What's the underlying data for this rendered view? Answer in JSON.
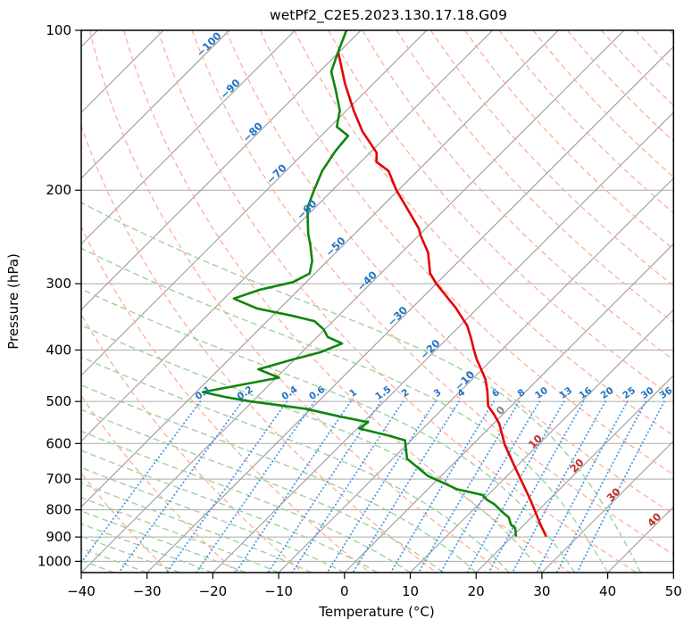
{
  "title": "wetPf2_C2E5.2023.130.17.18.G09",
  "axes": {
    "xlabel": "Temperature (°C)",
    "ylabel": "Pressure (hPa)",
    "x_ticks": [
      -40,
      -30,
      -20,
      -10,
      0,
      10,
      20,
      30,
      40,
      50
    ],
    "y_ticks": [
      100,
      200,
      300,
      400,
      500,
      600,
      700,
      800,
      900,
      1000
    ]
  },
  "chart_data": {
    "type": "line",
    "subtype": "skew-t-log-p",
    "title": "wetPf2_C2E5.2023.130.17.18.G09",
    "xlabel": "Temperature (°C)",
    "ylabel": "Pressure (hPa)",
    "xlim": [
      -40,
      50
    ],
    "ylim_hpa": [
      1050,
      100
    ],
    "grid": true,
    "skew": {
      "p_top": 100,
      "p_bottom": 1050,
      "t_min": -40,
      "t_max": 50
    },
    "series": [
      {
        "name": "temperature",
        "color": "#e60000",
        "width": 2.6,
        "points_p_t": [
          [
            110.5,
            -79.9
          ],
          [
            126,
            -74.3
          ],
          [
            141.6,
            -68.9
          ],
          [
            155,
            -64.4
          ],
          [
            170,
            -59.0
          ],
          [
            177,
            -57.6
          ],
          [
            184,
            -54.4
          ],
          [
            200,
            -50.3
          ],
          [
            218,
            -45.5
          ],
          [
            236,
            -41.1
          ],
          [
            244,
            -39.6
          ],
          [
            262,
            -36.0
          ],
          [
            287,
            -32.5
          ],
          [
            300,
            -30.0
          ],
          [
            333,
            -23.4
          ],
          [
            360,
            -18.9
          ],
          [
            382,
            -16.2
          ],
          [
            399,
            -14.3
          ],
          [
            416,
            -12.4
          ],
          [
            453,
            -8.1
          ],
          [
            478,
            -5.9
          ],
          [
            510,
            -3.5
          ],
          [
            530,
            -1.2
          ],
          [
            551,
            0.9
          ],
          [
            603,
            4.9
          ],
          [
            660,
            9.5
          ],
          [
            705,
            12.9
          ],
          [
            766,
            17.2
          ],
          [
            811,
            20.0
          ],
          [
            853,
            22.5
          ],
          [
            895,
            25.0
          ]
        ]
      },
      {
        "name": "dewpoint",
        "color": "#0c860c",
        "width": 2.6,
        "points_p_t": [
          [
            100,
            -82.2
          ],
          [
            110.7,
            -80.0
          ],
          [
            119.7,
            -78.2
          ],
          [
            129.4,
            -74.8
          ],
          [
            141.6,
            -71.0
          ],
          [
            151.9,
            -69.0
          ],
          [
            158,
            -65.9
          ],
          [
            169,
            -65.5
          ],
          [
            184,
            -64.5
          ],
          [
            200,
            -62.8
          ],
          [
            216,
            -61.1
          ],
          [
            229,
            -59.0
          ],
          [
            242,
            -57.0
          ],
          [
            252,
            -55.3
          ],
          [
            272,
            -52.3
          ],
          [
            287,
            -50.8
          ],
          [
            298,
            -52.0
          ],
          [
            308,
            -55.9
          ],
          [
            320,
            -58.5
          ],
          [
            334,
            -53.5
          ],
          [
            345,
            -46.9
          ],
          [
            353,
            -42.8
          ],
          [
            365,
            -40.3
          ],
          [
            378,
            -38.4
          ],
          [
            389,
            -35.2
          ],
          [
            404,
            -37.2
          ],
          [
            418,
            -40.5
          ],
          [
            435,
            -44.0
          ],
          [
            451,
            -39.6
          ],
          [
            465,
            -44.2
          ],
          [
            480,
            -49.0
          ],
          [
            490,
            -45.0
          ],
          [
            500,
            -40.2
          ],
          [
            516,
            -30.9
          ],
          [
            534,
            -24.3
          ],
          [
            547,
            -19.3
          ],
          [
            562,
            -19.7
          ],
          [
            580,
            -14.1
          ],
          [
            592,
            -10.9
          ],
          [
            641,
            -7.8
          ],
          [
            690,
            -2.1
          ],
          [
            732,
            4.5
          ],
          [
            750,
            9.2
          ],
          [
            766,
            10.6
          ],
          [
            780,
            12.3
          ],
          [
            811,
            15.1
          ],
          [
            827,
            16.6
          ],
          [
            853,
            18.0
          ],
          [
            866,
            19.2
          ],
          [
            894,
            20.4
          ]
        ]
      }
    ],
    "isobars": {
      "values": [
        100,
        200,
        300,
        400,
        500,
        600,
        700,
        800,
        900,
        1000
      ],
      "color": "#ababab",
      "width": 1.0
    },
    "isotherms": {
      "start": -120,
      "end": 50,
      "step": 10,
      "color": "#9c9c9c",
      "width": 1.1
    },
    "dry_adiabats": {
      "start": -30,
      "end": 190,
      "step": 10,
      "color": "#ffad99",
      "width": 1.3,
      "dash": "6 4"
    },
    "moist_adiabats": {
      "start": -40,
      "end": 45,
      "step": 5,
      "color": "#9ed29e",
      "width": 1.4,
      "dash": "7 4"
    },
    "mixing_lines": {
      "values": [
        0.1,
        0.2,
        0.4,
        0.6,
        1,
        1.5,
        2,
        3,
        4,
        6,
        8,
        10,
        13,
        16,
        20,
        25,
        30,
        36
      ],
      "p_top": 500,
      "color": "#4a97e0",
      "width": 1.8,
      "dash": "0.5 3.8"
    },
    "isotherm_labels": {
      "neg_color": "#2473c4",
      "zero_color": "#7f7f7f",
      "pos_color": "#c42b2b",
      "font_px": 11.5,
      "rotation": -45,
      "items": [
        {
          "t": -100,
          "p": 107.8
        },
        {
          "t": -90,
          "p": 130.7
        },
        {
          "t": -80,
          "p": 157.7
        },
        {
          "t": -70,
          "p": 189.0
        },
        {
          "t": -60,
          "p": 220.6
        },
        {
          "t": -50,
          "p": 259.1
        },
        {
          "t": -40,
          "p": 300.6
        },
        {
          "t": -30,
          "p": 350.3
        },
        {
          "t": -20,
          "p": 404.3
        },
        {
          "t": -10,
          "p": 463.0
        },
        {
          "t": 0,
          "p": 526.9
        },
        {
          "t": 10,
          "p": 602.9
        },
        {
          "t": 20,
          "p": 669.5
        },
        {
          "t": 30,
          "p": 759.6
        },
        {
          "t": 40,
          "p": 846.8
        }
      ]
    },
    "mixing_labels": {
      "p": 487,
      "color": "#2473c4",
      "font_px": 10.5,
      "rotation": -35,
      "values": [
        0.1,
        0.2,
        0.4,
        0.6,
        1,
        1.5,
        2,
        3,
        4,
        6,
        8,
        10,
        13,
        16,
        20,
        25,
        30,
        36
      ]
    }
  }
}
